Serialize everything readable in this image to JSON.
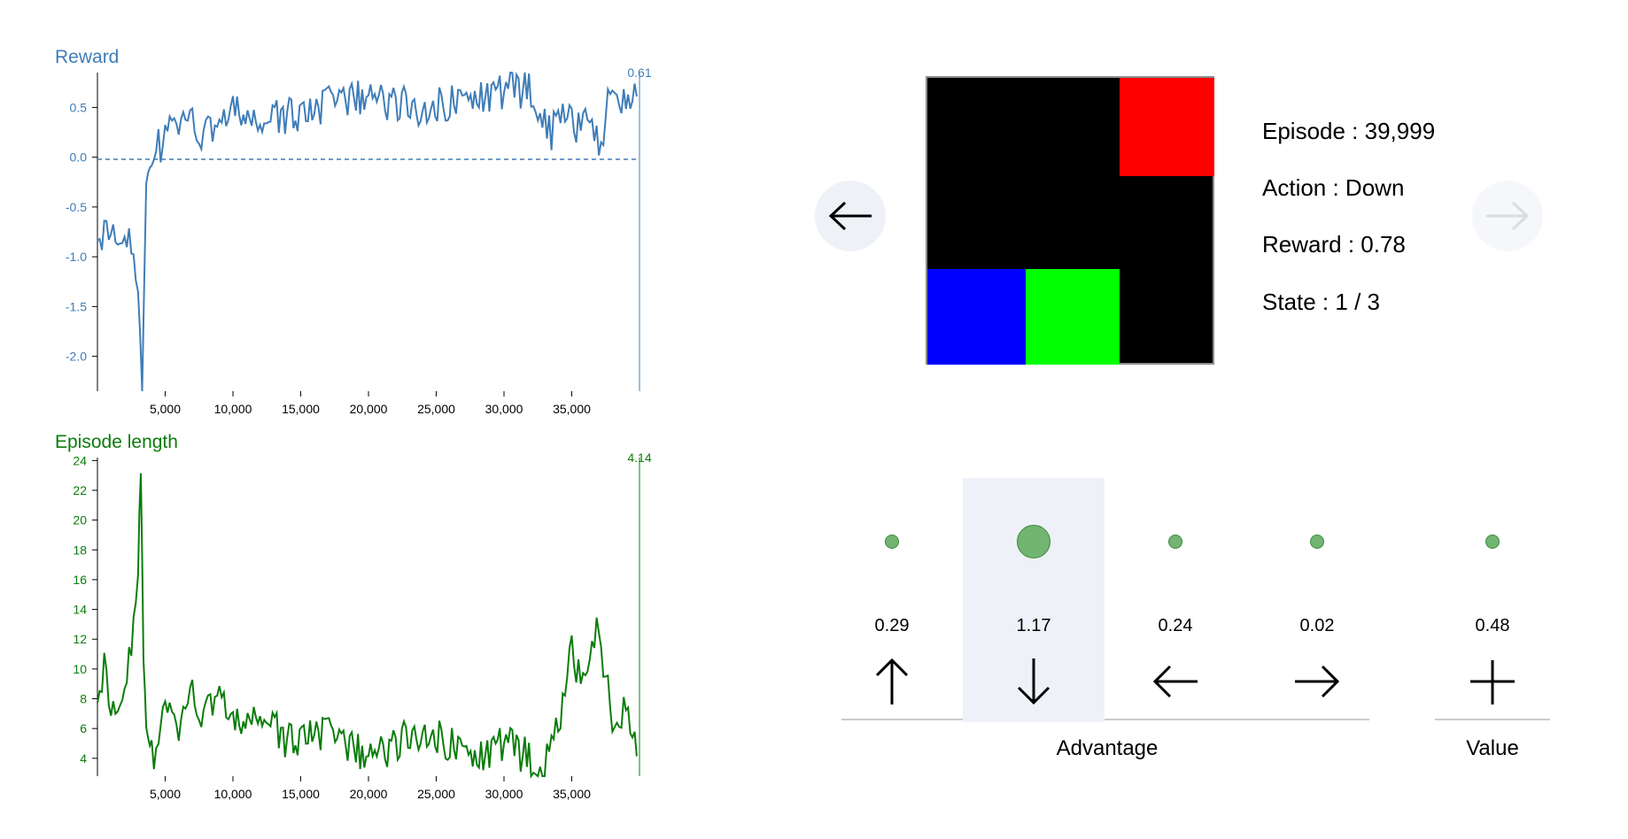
{
  "reward_chart": {
    "title": "Reward",
    "current_value": "0.61",
    "y_ticks": [
      "0.5",
      "0.0",
      "-0.5",
      "-1.0",
      "-1.5",
      "-2.0"
    ],
    "x_ticks": [
      "5,000",
      "10,000",
      "15,000",
      "20,000",
      "25,000",
      "30,000",
      "35,000"
    ],
    "color": "#3f7db8"
  },
  "length_chart": {
    "title": "Episode length",
    "current_value": "4.14",
    "y_ticks": [
      "24",
      "22",
      "20",
      "18",
      "16",
      "14",
      "12",
      "10",
      "8",
      "6",
      "4"
    ],
    "x_ticks": [
      "5,000",
      "10,000",
      "15,000",
      "20,000",
      "25,000",
      "30,000",
      "35,000"
    ],
    "color": "#0a7d0a"
  },
  "chart_data": [
    {
      "type": "line",
      "title": "Reward",
      "xlabel": "",
      "ylabel": "",
      "xlim": [
        0,
        40000
      ],
      "ylim": [
        -2.35,
        0.85
      ],
      "reference_line": 0.0,
      "x": [
        0,
        500,
        1000,
        1500,
        2000,
        2500,
        3000,
        3300,
        3600,
        4000,
        4500,
        5000,
        6000,
        7000,
        8000,
        9000,
        10000,
        12000,
        14000,
        16000,
        18000,
        20000,
        22000,
        24000,
        26000,
        28000,
        30000,
        32000,
        33500,
        34000,
        35000,
        36000,
        37000,
        38000,
        39000,
        39800
      ],
      "series": [
        {
          "values": [
            -0.65,
            -0.8,
            -0.6,
            -0.9,
            -0.75,
            -0.95,
            -1.4,
            -2.35,
            -0.2,
            -0.1,
            0.1,
            0.2,
            0.35,
            0.3,
            0.25,
            0.4,
            0.45,
            0.35,
            0.4,
            0.5,
            0.55,
            0.6,
            0.55,
            0.5,
            0.55,
            0.6,
            0.65,
            0.7,
            0.2,
            0.5,
            0.3,
            0.4,
            0.1,
            0.7,
            0.6,
            0.61
          ]
        }
      ]
    },
    {
      "type": "line",
      "title": "Episode length",
      "xlabel": "",
      "ylabel": "",
      "xlim": [
        0,
        40000
      ],
      "ylim": [
        2.8,
        24.2
      ],
      "x": [
        0,
        500,
        1000,
        1500,
        2000,
        2500,
        3000,
        3200,
        3400,
        3600,
        4000,
        5000,
        6000,
        7000,
        8000,
        9000,
        10000,
        12000,
        14000,
        16000,
        18000,
        20000,
        22000,
        24000,
        26000,
        28000,
        30000,
        32000,
        33000,
        34000,
        35000,
        36000,
        37000,
        38000,
        39000,
        39800
      ],
      "series": [
        {
          "values": [
            9,
            10,
            8,
            7,
            9,
            11,
            16,
            24,
            11,
            6,
            4,
            7,
            6,
            8,
            7,
            9,
            6,
            7,
            5,
            6,
            5,
            4,
            5,
            6,
            5,
            4,
            5,
            4,
            3.5,
            6,
            11,
            9,
            13,
            6,
            8,
            4.14
          ]
        }
      ]
    }
  ],
  "board": {
    "cells": [
      {
        "name": "red-goal-cell",
        "color": "#ff0000"
      },
      {
        "name": "blue-agent-cell",
        "color": "#0000ff"
      },
      {
        "name": "green-cell",
        "color": "#00ff00"
      }
    ]
  },
  "info": {
    "episode": "Episode : 39,999",
    "action": "Action : Down",
    "reward": "Reward : 0.78",
    "state": "State : 1 / 3"
  },
  "actions": [
    {
      "label": "0.29",
      "icon": "arrow-up-icon",
      "dot_size": 16,
      "selected": false
    },
    {
      "label": "1.17",
      "icon": "arrow-down-icon",
      "dot_size": 38,
      "selected": true
    },
    {
      "label": "0.24",
      "icon": "arrow-left-icon",
      "dot_size": 16,
      "selected": false
    },
    {
      "label": "0.02",
      "icon": "arrow-right-icon",
      "dot_size": 16,
      "selected": false
    }
  ],
  "value": {
    "label": "0.48",
    "icon": "plus-icon",
    "dot_size": 16
  },
  "labels": {
    "advantage": "Advantage",
    "value": "Value"
  }
}
